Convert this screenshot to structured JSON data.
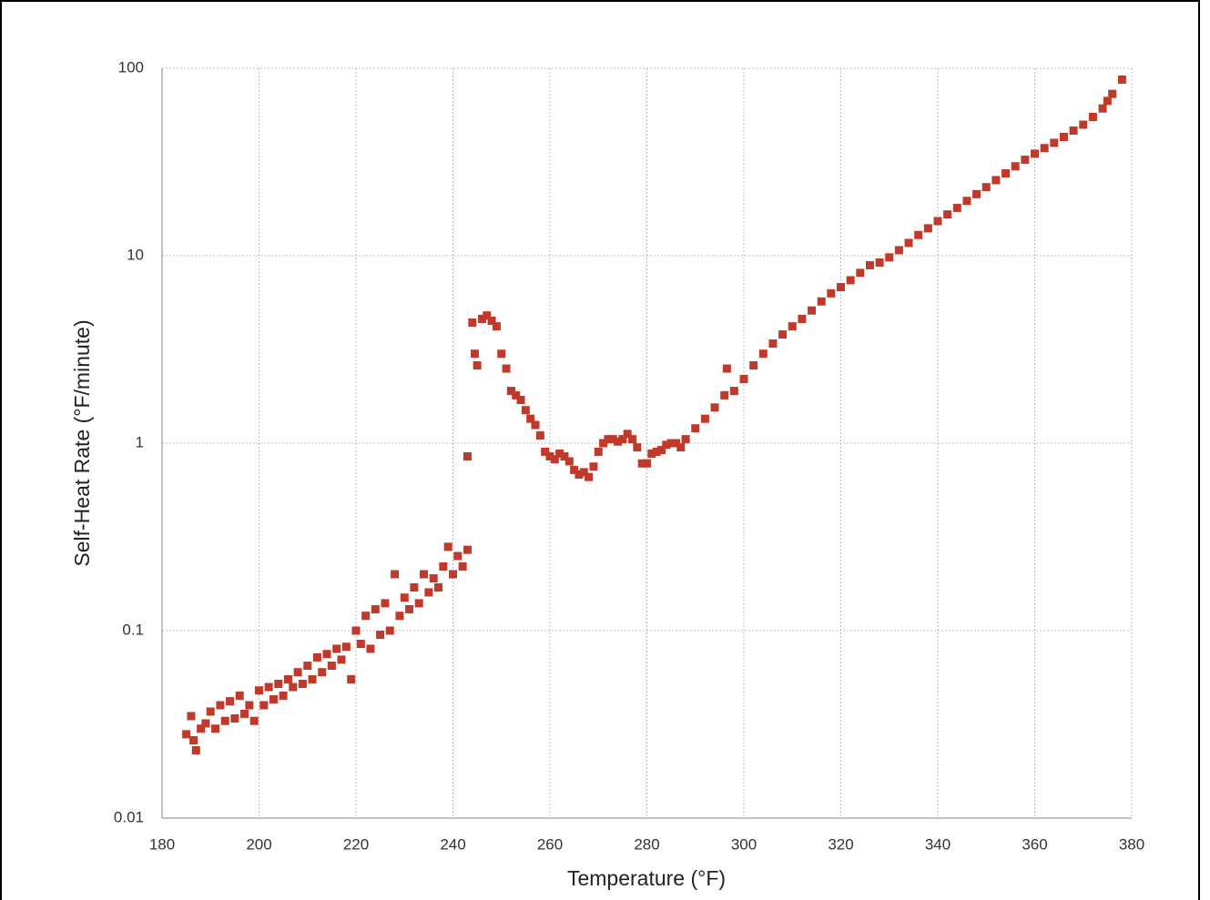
{
  "chart_data": {
    "type": "scatter",
    "x_label": "Temperature (°F)",
    "y_label": "Self-Heat Rate (°F/minute)",
    "xlim": [
      180,
      380
    ],
    "xticks": [
      180,
      200,
      220,
      240,
      260,
      280,
      300,
      320,
      340,
      360,
      380
    ],
    "ylim": [
      0.01,
      100
    ],
    "yticks": [
      0.01,
      0.1,
      1,
      10,
      100
    ],
    "ylog": true,
    "grid": true,
    "series": [
      {
        "color": "#c0392b",
        "x": [
          185,
          186,
          186.5,
          187,
          188,
          189,
          190,
          191,
          192,
          193,
          194,
          195,
          196,
          197,
          198,
          199,
          200,
          201,
          202,
          203,
          204,
          205,
          206,
          207,
          208,
          209,
          210,
          211,
          212,
          213,
          214,
          215,
          216,
          217,
          218,
          219,
          220,
          221,
          222,
          223,
          224,
          225,
          226,
          227,
          228,
          229,
          230,
          231,
          232,
          233,
          234,
          235,
          236,
          237,
          238,
          239,
          240,
          241,
          242,
          243,
          243,
          244,
          244.5,
          245,
          246,
          247,
          248,
          249,
          250,
          251,
          252,
          253,
          254,
          255,
          256,
          257,
          258,
          259,
          260,
          261,
          262,
          263,
          264,
          265,
          266,
          267,
          268,
          269,
          270,
          271,
          272,
          273,
          274,
          275,
          276,
          277,
          278,
          279,
          280,
          281,
          282,
          283,
          284,
          285,
          286,
          287,
          288,
          290,
          292,
          294,
          296,
          296.5,
          298,
          300,
          302,
          304,
          306,
          308,
          310,
          312,
          314,
          316,
          318,
          320,
          322,
          324,
          326,
          328,
          330,
          332,
          334,
          336,
          338,
          340,
          342,
          344,
          346,
          348,
          350,
          352,
          354,
          356,
          358,
          360,
          362,
          364,
          366,
          368,
          370,
          372,
          374,
          375,
          376,
          378
        ],
        "values": [
          0.028,
          0.035,
          0.026,
          0.023,
          0.03,
          0.032,
          0.037,
          0.03,
          0.04,
          0.033,
          0.042,
          0.034,
          0.045,
          0.036,
          0.04,
          0.033,
          0.048,
          0.04,
          0.05,
          0.043,
          0.052,
          0.045,
          0.055,
          0.05,
          0.06,
          0.052,
          0.065,
          0.055,
          0.072,
          0.06,
          0.075,
          0.065,
          0.08,
          0.07,
          0.082,
          0.055,
          0.1,
          0.085,
          0.12,
          0.08,
          0.13,
          0.095,
          0.14,
          0.1,
          0.2,
          0.12,
          0.15,
          0.13,
          0.17,
          0.14,
          0.2,
          0.16,
          0.19,
          0.17,
          0.22,
          0.28,
          0.2,
          0.25,
          0.22,
          0.27,
          0.85,
          4.4,
          3,
          2.6,
          4.6,
          4.8,
          4.5,
          4.2,
          3,
          2.5,
          1.9,
          1.8,
          1.7,
          1.5,
          1.35,
          1.25,
          1.1,
          0.9,
          0.85,
          0.82,
          0.88,
          0.85,
          0.8,
          0.72,
          0.68,
          0.7,
          0.66,
          0.75,
          0.9,
          1.0,
          1.05,
          1.05,
          1.02,
          1.05,
          1.12,
          1.05,
          0.95,
          0.78,
          0.78,
          0.88,
          0.9,
          0.92,
          0.98,
          1.0,
          1.0,
          0.95,
          1.05,
          1.2,
          1.35,
          1.55,
          1.8,
          2.5,
          1.9,
          2.2,
          2.6,
          3.0,
          3.4,
          3.8,
          4.2,
          4.6,
          5.1,
          5.7,
          6.3,
          6.8,
          7.4,
          8.1,
          8.9,
          9.2,
          9.8,
          10.7,
          11.7,
          12.9,
          14.0,
          15.3,
          16.6,
          18.0,
          19.6,
          21.3,
          23.2,
          25.3,
          27.5,
          30,
          32.5,
          35,
          37.5,
          40,
          43,
          46.5,
          50,
          55,
          61,
          67,
          73,
          87
        ]
      }
    ]
  }
}
